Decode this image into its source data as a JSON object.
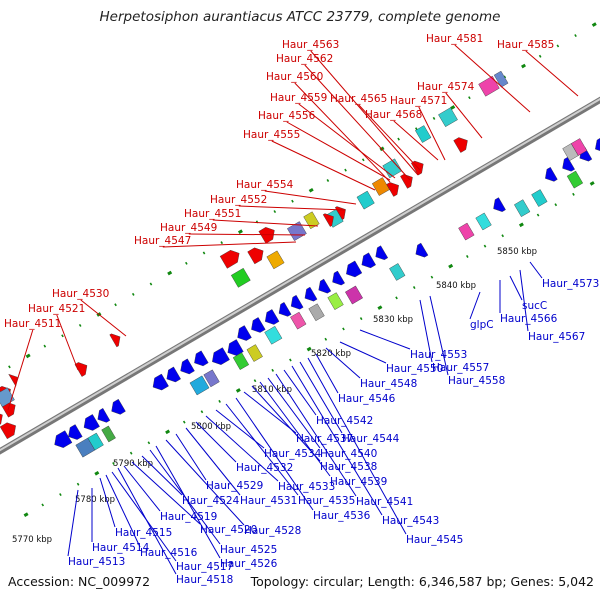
{
  "title": "Herpetosiphon aurantiacus ATCC 23779, complete genome",
  "accession": "Accession: NC_009972",
  "topology": "Topology: circular; Length: 6,346,587 bp; Genes: 5,042",
  "colors": {
    "forward_label": "#cc0000",
    "reverse_label": "#0000cc",
    "forward_gene": "#ee0000",
    "reverse_gene": "#0000ee",
    "backbone": "#888888",
    "tick": "#118811"
  },
  "scale_labels": [
    "5770 kbp",
    "5780 kbp",
    "5790 kbp",
    "5800 kbp",
    "5810 kbp",
    "5820 kbp",
    "5830 kbp",
    "5840 kbp",
    "5850 kbp"
  ],
  "forward_labels": [
    "Haur_4511",
    "Haur_4521",
    "Haur_4530",
    "Haur_4547",
    "Haur_4549",
    "Haur_4551",
    "Haur_4552",
    "Haur_4554",
    "Haur_4555",
    "Haur_4556",
    "Haur_4559",
    "Haur_4560",
    "Haur_4562",
    "Haur_4563",
    "Haur_4565",
    "Haur_4568",
    "Haur_4571",
    "Haur_4574",
    "Haur_4581",
    "Haur_4585"
  ],
  "reverse_labels": [
    "Haur_4513",
    "Haur_4514",
    "Haur_4515",
    "Haur_4516",
    "Haur_4517",
    "Haur_4518",
    "Haur_4519",
    "Haur_4520",
    "Haur_4524",
    "Haur_4525",
    "Haur_4526",
    "Haur_4528",
    "Haur_4529",
    "Haur_4531",
    "Haur_4532",
    "Haur_4533",
    "Haur_4534",
    "Haur_4535",
    "Haur_4536",
    "Haur_4537",
    "Haur_4538",
    "Haur_4539",
    "Haur_4540",
    "Haur_4541",
    "Haur_4542",
    "Haur_4543",
    "Haur_4544",
    "Haur_4545",
    "Haur_4546",
    "Haur_4548",
    "Haur_4550",
    "Haur_4553",
    "Haur_4557",
    "Haur_4558",
    "glpC",
    "Haur_4566",
    "sucC",
    "Haur_4567",
    "Haur_4573"
  ]
}
